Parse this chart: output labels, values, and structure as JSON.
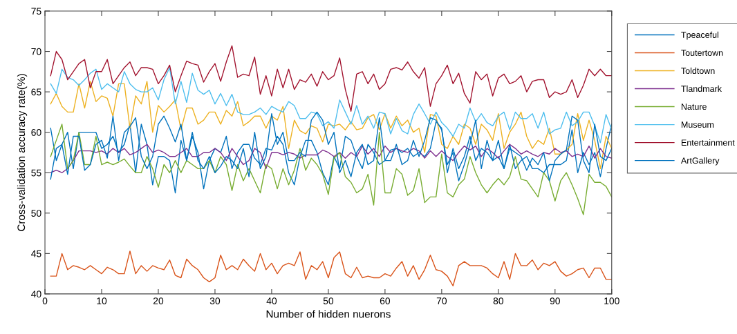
{
  "chart_data": {
    "type": "line",
    "xlabel": "Number of hidden nuerons",
    "ylabel": "Cross-validation accuracy rate(%)",
    "x": [
      1,
      2,
      3,
      4,
      5,
      6,
      7,
      8,
      9,
      10,
      11,
      12,
      13,
      14,
      15,
      16,
      17,
      18,
      19,
      20,
      21,
      22,
      23,
      24,
      25,
      26,
      27,
      28,
      29,
      30,
      31,
      32,
      33,
      34,
      35,
      36,
      37,
      38,
      39,
      40,
      41,
      42,
      43,
      44,
      45,
      46,
      47,
      48,
      49,
      50,
      51,
      52,
      53,
      54,
      55,
      56,
      57,
      58,
      59,
      60,
      61,
      62,
      63,
      64,
      65,
      66,
      67,
      68,
      69,
      70,
      71,
      72,
      73,
      74,
      75,
      76,
      77,
      78,
      79,
      80,
      81,
      82,
      83,
      84,
      85,
      86,
      87,
      88,
      89,
      90,
      91,
      92,
      93,
      94,
      95,
      96,
      97,
      98,
      99,
      100
    ],
    "xlim": [
      0,
      100
    ],
    "xticks": [
      0,
      10,
      20,
      30,
      40,
      50,
      60,
      70,
      80,
      90,
      100
    ],
    "ylim": [
      40,
      75
    ],
    "yticks": [
      40,
      45,
      50,
      55,
      60,
      65,
      70,
      75
    ],
    "grid": false,
    "legend": "top right",
    "marker": "none",
    "line_style": "solid",
    "series": [
      {
        "name": "Tpeaceful",
        "color": "#0072bd",
        "values": [
          60.5,
          56.5,
          58.5,
          60.0,
          55.5,
          60.0,
          60.0,
          60.0,
          60.0,
          58.0,
          58.5,
          59.5,
          57.5,
          58.5,
          61.0,
          55.0,
          61.0,
          58.5,
          53.5,
          57.0,
          57.0,
          56.5,
          52.5,
          59.0,
          56.5,
          59.5,
          57.5,
          53.0,
          56.5,
          58.0,
          57.5,
          59.5,
          55.5,
          57.5,
          58.5,
          58.5,
          56.8,
          56.0,
          58.0,
          57.8,
          59.5,
          58.5,
          55.0,
          53.5,
          57.0,
          59.0,
          59.0,
          57.5,
          55.0,
          53.5,
          57.0,
          55.5,
          59.5,
          59.0,
          57.0,
          55.5,
          58.5,
          57.5,
          56.0,
          56.5,
          57.8,
          58.0,
          57.5,
          58.0,
          57.0,
          57.5,
          57.0,
          58.0,
          61.3,
          60.5,
          55.0,
          58.0,
          55.5,
          57.0,
          59.5,
          56.5,
          58.0,
          57.5,
          56.5,
          57.0,
          55.5,
          58.5,
          55.5,
          56.5,
          57.0,
          55.5,
          55.5,
          55.0,
          56.0,
          56.0,
          56.0,
          56.5,
          60.3,
          55.0,
          57.5,
          56.0,
          57.5,
          54.5,
          58.0,
          61.0
        ]
      },
      {
        "name": "Toutertown",
        "color": "#d95319",
        "values": [
          42.2,
          42.2,
          45.0,
          43.0,
          43.5,
          43.3,
          43.0,
          43.5,
          43.0,
          42.5,
          43.3,
          43.0,
          42.5,
          42.5,
          45.3,
          42.5,
          43.5,
          42.8,
          43.5,
          43.2,
          43.0,
          44.2,
          42.3,
          42.0,
          44.3,
          43.5,
          43.0,
          42.0,
          41.5,
          42.0,
          44.8,
          43.0,
          43.5,
          43.0,
          44.3,
          43.5,
          42.8,
          45.0,
          43.0,
          43.8,
          42.5,
          43.5,
          43.8,
          43.5,
          45.2,
          41.8,
          43.5,
          43.0,
          44.0,
          42.0,
          44.5,
          45.2,
          42.5,
          42.0,
          43.3,
          42.0,
          42.2,
          42.0,
          42.0,
          42.5,
          42.2,
          43.2,
          44.0,
          42.2,
          43.5,
          41.8,
          43.0,
          44.8,
          43.0,
          42.8,
          42.2,
          41.0,
          43.5,
          44.0,
          43.5,
          43.5,
          43.5,
          43.2,
          42.5,
          42.0,
          44.0,
          41.8,
          45.0,
          43.5,
          43.5,
          44.2,
          43.0,
          43.8,
          43.5,
          44.0,
          42.8,
          42.2,
          42.5,
          43.0,
          43.2,
          42.0,
          43.2,
          43.2,
          41.8,
          41.8
        ]
      },
      {
        "name": "Toldtown",
        "color": "#edb120",
        "values": [
          63.5,
          64.8,
          63.2,
          62.5,
          62.5,
          66.0,
          63.0,
          66.3,
          63.8,
          64.5,
          64.2,
          62.0,
          66.0,
          66.0,
          60.5,
          64.5,
          63.5,
          66.3,
          60.0,
          63.3,
          62.5,
          63.2,
          64.0,
          60.3,
          63.0,
          63.0,
          61.0,
          61.5,
          62.5,
          62.5,
          61.0,
          62.7,
          62.0,
          63.8,
          60.8,
          61.3,
          62.0,
          62.0,
          60.5,
          62.0,
          61.5,
          63.2,
          58.0,
          61.5,
          60.2,
          59.8,
          60.8,
          60.5,
          58.8,
          61.0,
          60.8,
          61.0,
          60.3,
          61.3,
          60.3,
          60.5,
          61.8,
          62.2,
          60.3,
          62.3,
          60.5,
          62.0,
          60.8,
          61.5,
          60.0,
          60.5,
          57.5,
          62.2,
          62.0,
          58.5,
          58.0,
          59.5,
          58.5,
          61.0,
          60.5,
          58.5,
          61.0,
          60.3,
          59.0,
          62.3,
          58.0,
          60.0,
          61.0,
          62.5,
          59.5,
          58.0,
          59.0,
          58.5,
          60.5,
          57.3,
          57.3,
          57.8,
          58.5,
          62.3,
          59.0,
          61.5,
          59.0,
          55.5,
          59.5,
          58.0
        ]
      },
      {
        "name": "Tlandmark",
        "color": "#7e2f8e",
        "values": [
          55.0,
          55.3,
          55.0,
          55.5,
          56.5,
          57.7,
          57.7,
          57.7,
          57.5,
          57.7,
          57.3,
          58.0,
          57.5,
          58.0,
          57.2,
          57.5,
          58.0,
          58.5,
          57.5,
          57.8,
          57.5,
          57.0,
          57.0,
          57.5,
          58.0,
          57.0,
          57.0,
          57.5,
          57.5,
          58.0,
          57.5,
          56.5,
          58.0,
          57.0,
          56.0,
          56.5,
          58.0,
          57.5,
          55.5,
          57.5,
          57.5,
          57.2,
          57.5,
          57.3,
          56.8,
          57.2,
          57.2,
          57.2,
          57.8,
          57.5,
          57.0,
          57.5,
          56.8,
          57.5,
          57.0,
          58.3,
          57.3,
          58.0,
          57.0,
          58.3,
          57.5,
          58.0,
          57.7,
          57.5,
          58.0,
          57.7,
          56.8,
          57.7,
          57.0,
          57.7,
          57.0,
          56.5,
          57.5,
          58.3,
          57.8,
          58.3,
          57.0,
          58.0,
          57.5,
          56.8,
          57.7,
          58.5,
          58.0,
          57.3,
          57.7,
          57.3,
          57.0,
          57.5,
          57.3,
          58.0,
          57.5,
          57.7,
          57.0,
          57.3,
          57.0,
          58.3,
          56.8,
          58.0,
          57.0,
          56.8
        ]
      },
      {
        "name": "Nature",
        "color": "#77ac30",
        "values": [
          57.0,
          59.0,
          61.0,
          55.5,
          56.5,
          60.0,
          56.0,
          56.0,
          59.5,
          56.0,
          56.3,
          56.0,
          56.3,
          56.7,
          55.8,
          55.0,
          55.0,
          57.0,
          55.5,
          53.2,
          56.0,
          55.0,
          56.5,
          55.0,
          56.5,
          56.0,
          55.5,
          55.5,
          56.5,
          55.0,
          57.0,
          56.0,
          52.8,
          56.0,
          54.0,
          55.5,
          54.0,
          52.5,
          56.0,
          55.5,
          53.0,
          55.5,
          53.5,
          55.3,
          58.0,
          55.3,
          56.8,
          56.0,
          54.8,
          52.3,
          56.8,
          57.5,
          54.5,
          53.8,
          52.5,
          53.0,
          54.8,
          51.0,
          60.0,
          52.5,
          52.5,
          55.5,
          54.8,
          52.2,
          52.8,
          55.5,
          51.3,
          52.0,
          52.0,
          57.3,
          52.5,
          52.0,
          53.5,
          54.2,
          57.0,
          55.0,
          53.5,
          52.5,
          53.5,
          54.3,
          53.5,
          54.5,
          57.0,
          54.2,
          54.0,
          53.0,
          52.0,
          55.0,
          54.0,
          51.5,
          54.0,
          55.0,
          53.5,
          51.8,
          49.8,
          54.8,
          53.8,
          53.8,
          53.3,
          52.0
        ]
      },
      {
        "name": "Museum",
        "color": "#4dbeee",
        "values": [
          66.0,
          64.8,
          67.8,
          66.8,
          66.5,
          65.8,
          66.5,
          67.3,
          67.8,
          65.3,
          66.0,
          65.5,
          65.0,
          67.5,
          66.0,
          65.3,
          65.0,
          65.0,
          65.5,
          64.0,
          66.5,
          68.0,
          63.5,
          66.3,
          63.7,
          67.3,
          65.2,
          64.7,
          65.2,
          63.5,
          64.8,
          63.3,
          64.7,
          62.5,
          62.2,
          62.2,
          62.5,
          63.0,
          62.2,
          63.2,
          62.8,
          62.5,
          63.8,
          63.3,
          61.7,
          61.7,
          62.5,
          62.3,
          60.8,
          61.3,
          60.5,
          64.0,
          62.5,
          61.0,
          63.3,
          61.0,
          62.0,
          60.5,
          62.5,
          62.3,
          59.8,
          61.7,
          60.2,
          59.8,
          62.2,
          63.5,
          62.3,
          61.0,
          62.5,
          61.2,
          60.5,
          59.5,
          61.0,
          60.5,
          63.0,
          61.3,
          62.3,
          61.2,
          60.8,
          62.0,
          62.5,
          60.3,
          62.5,
          61.7,
          61.7,
          62.3,
          60.5,
          62.5,
          59.8,
          60.3,
          60.5,
          62.5,
          60.8,
          61.3,
          62.5,
          62.5,
          60.8,
          58.7,
          62.2,
          60.3
        ]
      },
      {
        "name": "Entertainment",
        "color": "#a2142f",
        "values": [
          67.0,
          70.0,
          69.0,
          66.5,
          67.5,
          68.5,
          69.0,
          65.5,
          67.5,
          67.5,
          69.0,
          66.0,
          67.0,
          68.0,
          68.7,
          67.0,
          68.0,
          68.0,
          67.8,
          66.0,
          67.0,
          68.3,
          65.0,
          67.0,
          68.8,
          68.5,
          68.3,
          66.2,
          67.5,
          68.5,
          66.3,
          68.7,
          70.7,
          66.8,
          67.2,
          67.0,
          69.3,
          64.7,
          67.0,
          64.5,
          67.8,
          65.5,
          67.8,
          65.3,
          66.5,
          66.2,
          67.2,
          65.7,
          67.5,
          66.5,
          67.0,
          69.2,
          65.3,
          62.6,
          67.2,
          67.5,
          66.0,
          67.2,
          65.3,
          66.0,
          67.8,
          68.0,
          67.7,
          68.7,
          67.5,
          66.7,
          68.0,
          63.2,
          66.0,
          67.0,
          68.3,
          66.0,
          67.3,
          64.8,
          63.6,
          67.5,
          66.5,
          67.2,
          64.5,
          66.7,
          67.2,
          66.0,
          66.3,
          67.0,
          65.0,
          66.3,
          66.5,
          66.5,
          64.3,
          65.0,
          64.7,
          65.0,
          66.5,
          64.3,
          65.8,
          67.8,
          67.0,
          67.8,
          67.0,
          67.0
        ]
      },
      {
        "name": "ArtGallery",
        "color": "#0072bd",
        "values": [
          54.2,
          58.0,
          58.5,
          54.8,
          59.5,
          59.5,
          55.3,
          56.0,
          58.5,
          59.0,
          56.8,
          62.0,
          56.5,
          60.0,
          60.7,
          61.8,
          57.0,
          55.5,
          57.0,
          61.0,
          62.0,
          60.5,
          58.8,
          61.0,
          56.5,
          60.0,
          56.5,
          55.5,
          57.0,
          55.0,
          55.8,
          57.0,
          56.5,
          55.5,
          58.0,
          54.5,
          60.0,
          55.5,
          57.0,
          62.3,
          58.5,
          60.0,
          56.5,
          56.5,
          57.5,
          57.0,
          61.5,
          62.5,
          61.5,
          58.5,
          60.0,
          55.0,
          56.5,
          54.5,
          57.5,
          58.5,
          56.0,
          56.5,
          61.8,
          56.5,
          56.5,
          58.5,
          56.0,
          56.5,
          59.0,
          57.0,
          59.0,
          61.8,
          61.5,
          60.3,
          56.0,
          57.5,
          54.0,
          56.0,
          58.5,
          61.5,
          55.5,
          59.0,
          56.5,
          59.0,
          55.5,
          58.0,
          57.5,
          57.0,
          55.3,
          56.8,
          56.0,
          57.5,
          54.0,
          56.5,
          57.3,
          57.8,
          62.0,
          61.5,
          56.5,
          55.0,
          61.0,
          57.0,
          56.5,
          58.0
        ]
      }
    ]
  }
}
